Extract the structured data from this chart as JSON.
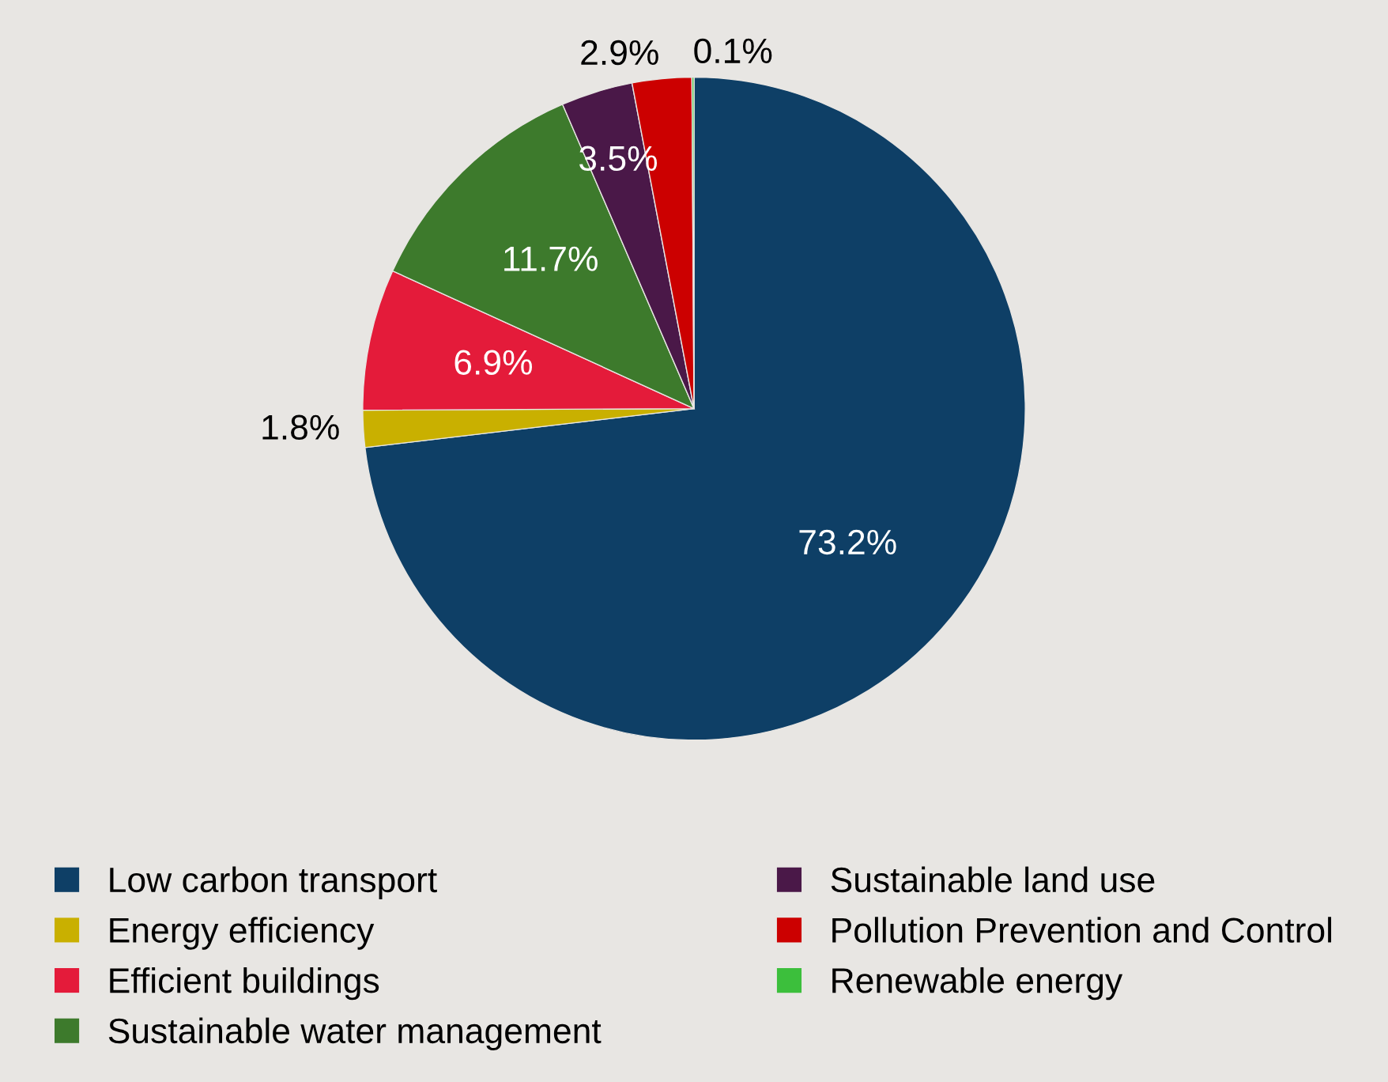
{
  "chart_data": {
    "type": "pie",
    "categories": [
      "Low carbon transport",
      "Energy efficiency",
      "Efficient buildings",
      "Sustainable water management",
      "Sustainable land use",
      "Pollution Prevention and Control",
      "Renewable energy"
    ],
    "values": [
      73.2,
      1.8,
      6.9,
      11.7,
      3.5,
      2.9,
      0.1
    ],
    "colors": [
      "#0e3f66",
      "#c9b000",
      "#e41b3a",
      "#3d7a2c",
      "#4a1848",
      "#cc0000",
      "#3cbf3c"
    ],
    "value_labels": [
      "73.2%",
      "1.8%",
      "6.9%",
      "11.7%",
      "3.5%",
      "2.9%",
      "0.1%"
    ],
    "legend": "bottom"
  }
}
